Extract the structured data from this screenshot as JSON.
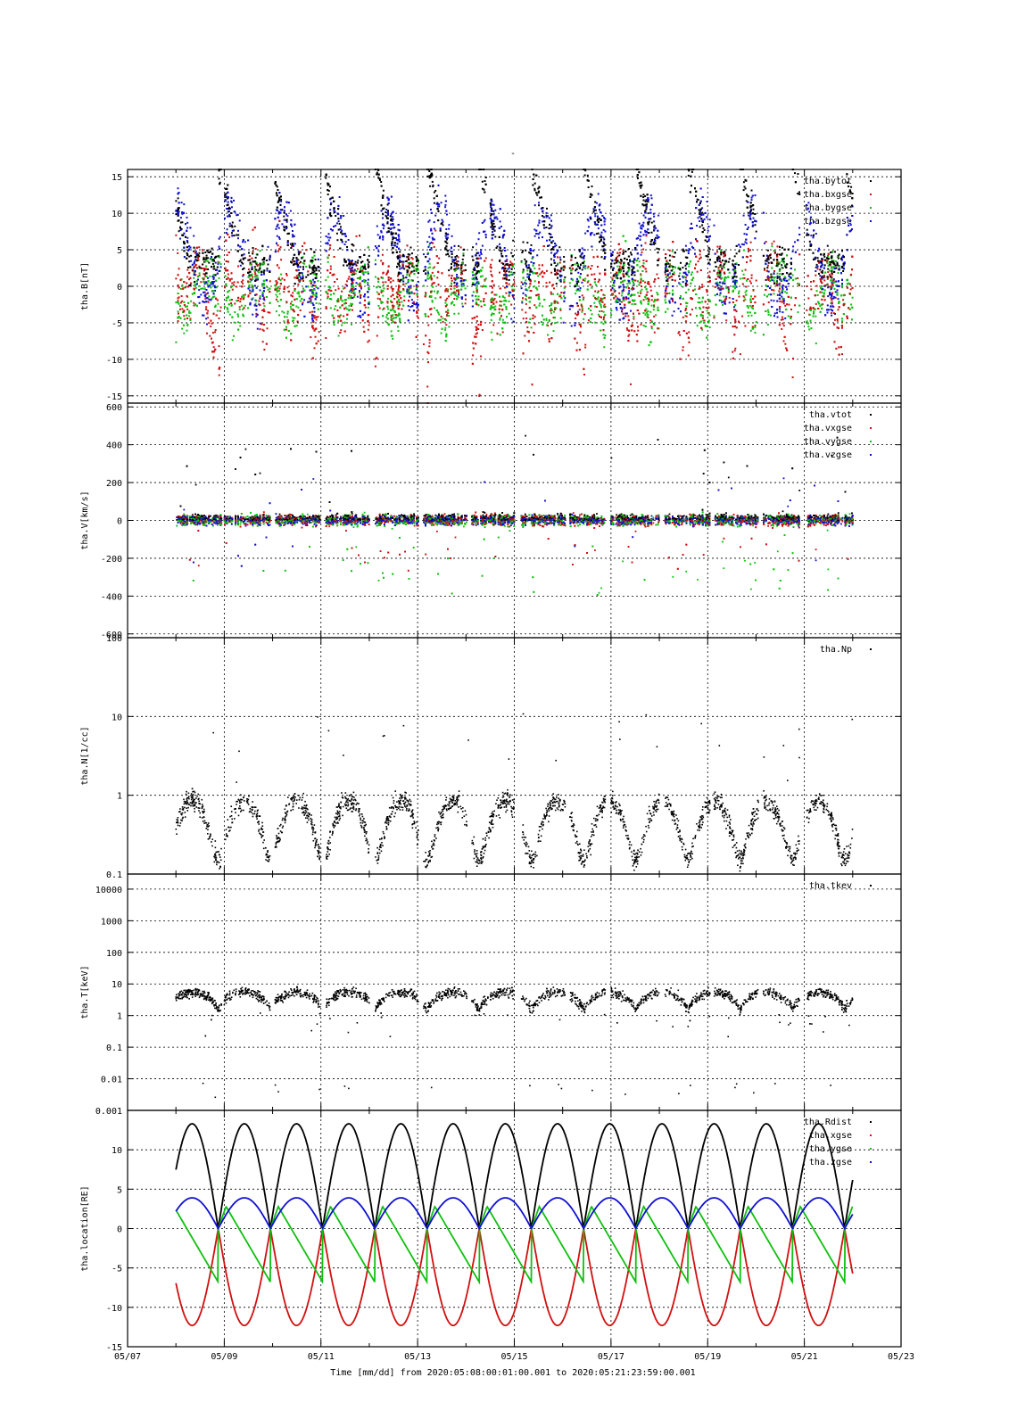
{
  "top_title": "-",
  "footer": {
    "xlabel": "Time [mm/dd]  from 2020:05:08:00:01:00.001  to  2020:05:21:23:59:00.001"
  },
  "colors": {
    "black": "#000000",
    "red": "#d01010",
    "green": "#10c010",
    "blue": "#1010d0",
    "grid": "#000000"
  },
  "chart_data": [
    {
      "type": "scatter",
      "id": "B",
      "ylabel": "tha.B[nT]",
      "ylim": [
        -16,
        16
      ],
      "yscale": "linear",
      "yticks": [
        15,
        10,
        5,
        0,
        -5,
        -10,
        -15
      ],
      "ytick_labels": [
        "15",
        "10",
        "5",
        "0",
        "-5",
        "-10",
        "-15"
      ],
      "legend_placement": "top-right",
      "series": [
        {
          "name": "tha.bytot",
          "color": "black"
        },
        {
          "name": "tha.bxgse",
          "color": "red"
        },
        {
          "name": "tha.bygse",
          "color": "green"
        },
        {
          "name": "tha.bzgse",
          "color": "blue"
        }
      ]
    },
    {
      "type": "scatter",
      "id": "V",
      "ylabel": "tha.V[km/s]",
      "ylim": [
        -620,
        620
      ],
      "yscale": "linear",
      "yticks": [
        600,
        400,
        200,
        0,
        -200,
        -400,
        -600
      ],
      "ytick_labels": [
        "600",
        "400",
        "200",
        "0",
        "-200",
        "-400",
        "-600"
      ],
      "legend_placement": "top-right",
      "series": [
        {
          "name": "tha.vtot",
          "color": "black"
        },
        {
          "name": "tha.vxgse",
          "color": "red"
        },
        {
          "name": "tha.vygse",
          "color": "green"
        },
        {
          "name": "tha.vzgse",
          "color": "blue"
        }
      ]
    },
    {
      "type": "scatter",
      "id": "N",
      "ylabel": "tha.N[1/cc]",
      "ylim": [
        0.1,
        100
      ],
      "yscale": "log",
      "yticks": [
        100,
        10,
        1,
        0.1
      ],
      "ytick_labels": [
        "100",
        "10",
        "1",
        "0.1"
      ],
      "legend_placement": "top-right",
      "series": [
        {
          "name": "tha.Np",
          "color": "black"
        }
      ]
    },
    {
      "type": "scatter",
      "id": "T",
      "ylabel": "tha.T[keV]",
      "ylim": [
        0.001,
        30000
      ],
      "yscale": "log",
      "yticks": [
        10000,
        1000,
        100,
        10,
        1,
        0.1,
        0.01,
        0.001
      ],
      "ytick_labels": [
        "10000",
        "1000",
        "100",
        "10",
        "1",
        "0.1",
        "0.01",
        "0.001"
      ],
      "legend_placement": "top-right",
      "series": [
        {
          "name": "tha.tkev",
          "color": "black"
        }
      ]
    },
    {
      "type": "line",
      "id": "location",
      "ylabel": "tha.location[RE]",
      "ylim": [
        -15,
        15
      ],
      "yscale": "linear",
      "yticks": [
        10,
        5,
        0,
        -5,
        -10,
        -15
      ],
      "ytick_labels": [
        "10",
        "5",
        "0",
        "-5",
        "-10",
        "-15"
      ],
      "legend_placement": "top-right",
      "series": [
        {
          "name": "tha.Rdist",
          "color": "black"
        },
        {
          "name": "tha.xgse",
          "color": "red"
        },
        {
          "name": "tha.ygse",
          "color": "green"
        },
        {
          "name": "tha.zgse",
          "color": "blue"
        }
      ],
      "x": [
        "2020-05-08",
        "2020-05-09",
        "2020-05-10",
        "2020-05-11",
        "2020-05-12",
        "2020-05-13",
        "2020-05-14",
        "2020-05-15",
        "2020-05-16",
        "2020-05-17",
        "2020-05-18",
        "2020-05-19",
        "2020-05-20",
        "2020-05-21",
        "2020-05-22"
      ],
      "orbit": {
        "apogee_Rdist": 13.3,
        "perigee_xgse": -12.3,
        "ygse_range": [
          -6.8,
          2.8
        ],
        "zgse_range": [
          0,
          3.9
        ],
        "perigee_times": [
          "05/08 21:00",
          "05/09 23:00",
          "05/11 01:00",
          "05/12 03:00",
          "05/13 05:00",
          "05/14 07:00",
          "05/15 09:00",
          "05/16 10:00",
          "05/17 12:00",
          "05/18 14:00",
          "05/19 16:00",
          "05/20 18:00",
          "05/21 20:00"
        ]
      }
    }
  ],
  "x_axis": {
    "xlim": [
      "2020-05-07",
      "2020-05-23"
    ],
    "tick_labels": [
      "05/07",
      "05/09",
      "05/11",
      "05/13",
      "05/15",
      "05/17",
      "05/19",
      "05/21",
      "05/23"
    ],
    "data_range": [
      "2020-05-08 00:01",
      "2020-05-21 23:59"
    ],
    "grid": true
  }
}
